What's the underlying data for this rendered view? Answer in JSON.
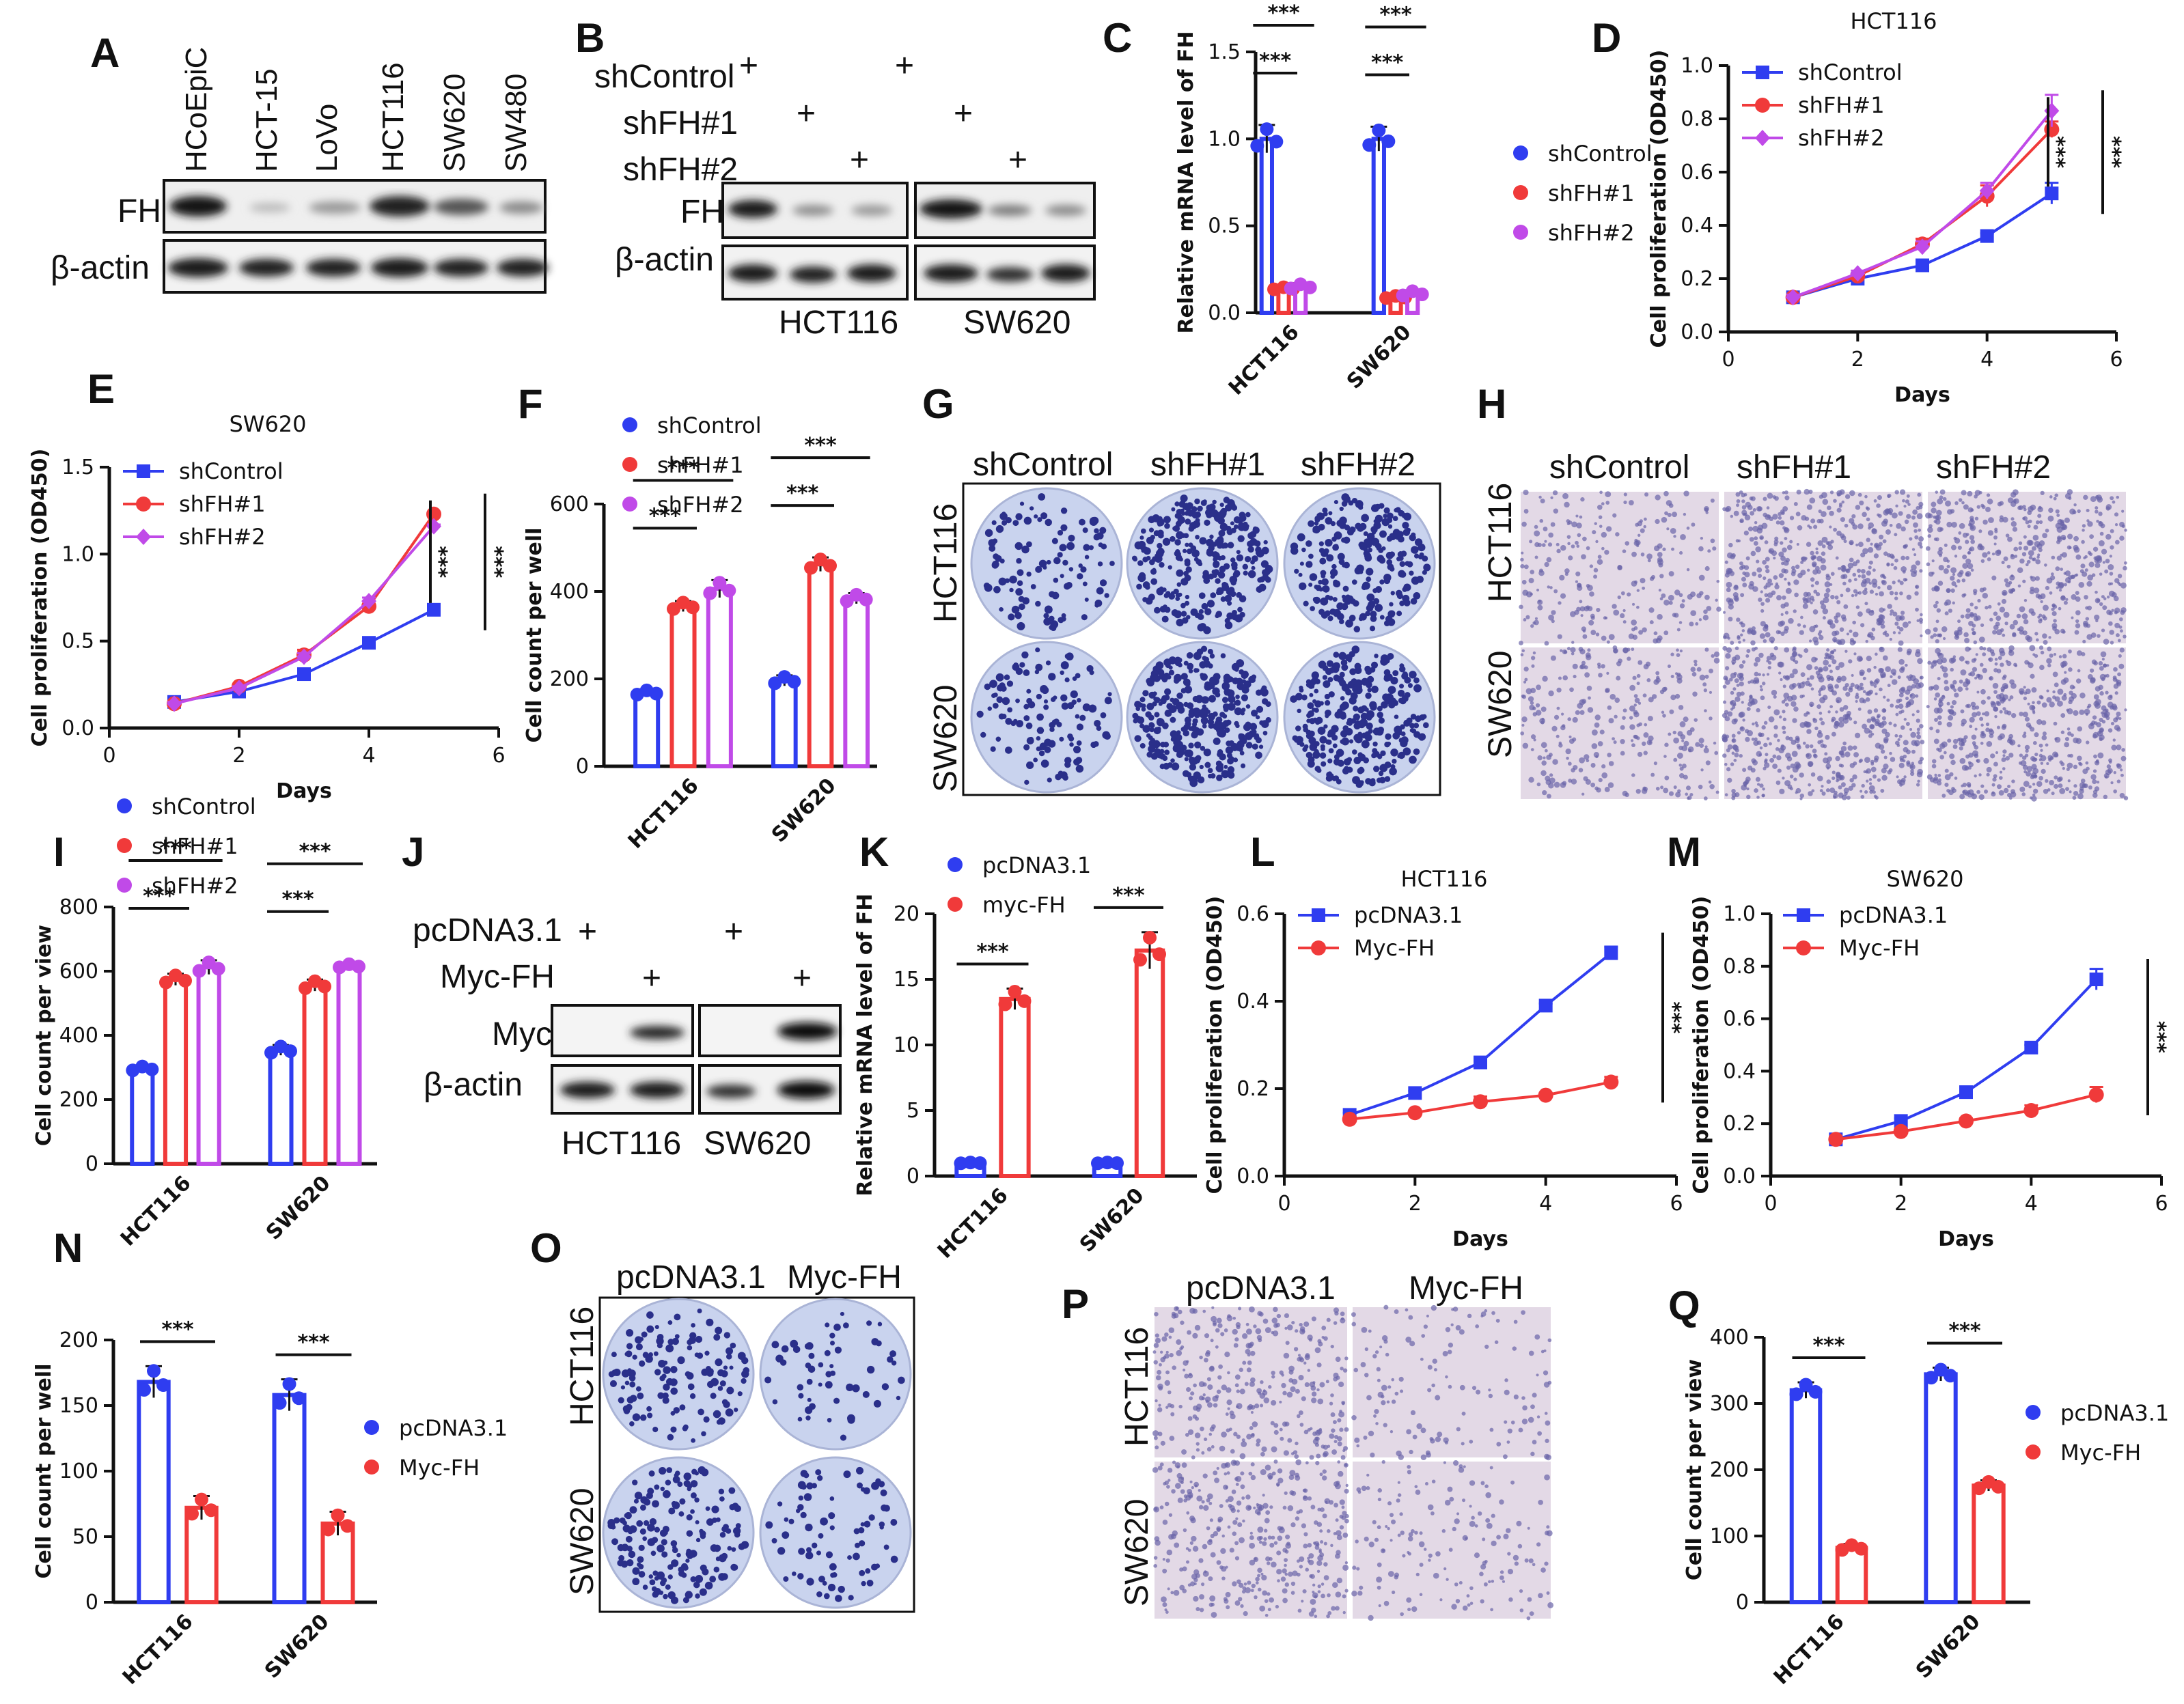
{
  "panels": {
    "A": "A",
    "B": "B",
    "C": "C",
    "D": "D",
    "E": "E",
    "F": "F",
    "G": "G",
    "H": "H",
    "I": "I",
    "J": "J",
    "K": "K",
    "L": "L",
    "M": "M",
    "N": "N",
    "O": "O",
    "P": "P",
    "Q": "Q"
  },
  "blots": {
    "A": {
      "lanes": [
        "HCoEpiC",
        "HCT-15",
        "LoVo",
        "HCT116",
        "SW620",
        "SW480"
      ],
      "rows": [
        "FH",
        "β-actin"
      ]
    },
    "B": {
      "conditions": [
        "shControl",
        "shFH#1",
        "shFH#2"
      ],
      "plus": "+",
      "rows": [
        "FH",
        "β-actin"
      ],
      "cells": [
        "HCT116",
        "SW620"
      ]
    },
    "J": {
      "conditions": [
        "pcDNA3.1",
        "Myc-FH"
      ],
      "plus": "+",
      "rows": [
        "Myc",
        "β-actin"
      ],
      "cells": [
        "HCT116",
        "SW620"
      ]
    }
  },
  "images": {
    "G": {
      "columns": [
        "shControl",
        "shFH#1",
        "shFH#2"
      ],
      "rows": [
        "HCT116",
        "SW620"
      ]
    },
    "H": {
      "columns": [
        "shControl",
        "shFH#1",
        "shFH#2"
      ],
      "rows": [
        "HCT116",
        "SW620"
      ]
    },
    "O": {
      "columns": [
        "pcDNA3.1",
        "Myc-FH"
      ],
      "rows": [
        "HCT116",
        "SW620"
      ]
    },
    "P": {
      "columns": [
        "pcDNA3.1",
        "Myc-FH"
      ],
      "rows": [
        "HCT116",
        "SW620"
      ]
    }
  },
  "colors": {
    "blue": "#2f3df0",
    "red": "#f03a3a",
    "purple": "#c04ae8",
    "stain": "#2a2f8a",
    "plate": "#c9d3ee"
  },
  "chart_data": [
    {
      "id": "C",
      "type": "bar",
      "title": "",
      "ylabel": "Relative mRNA level of FH",
      "xlabel": "",
      "ylim": [
        0,
        1.5
      ],
      "yticks": [
        "0.0",
        "0.5",
        "1.0",
        "1.5"
      ],
      "categories": [
        "HCT116",
        "SW620"
      ],
      "series": [
        {
          "name": "shControl",
          "values": [
            1.0,
            1.0
          ],
          "error": [
            0.08,
            0.07
          ]
        },
        {
          "name": "shFH#1",
          "values": [
            0.14,
            0.09
          ],
          "error": [
            0.01,
            0.01
          ]
        },
        {
          "name": "shFH#2",
          "values": [
            0.15,
            0.11
          ],
          "error": [
            0.02,
            0.02
          ]
        }
      ],
      "significance": "***"
    },
    {
      "id": "D",
      "type": "line",
      "title": "HCT116",
      "xlabel": "Days",
      "ylabel": "Cell proliferation (OD450)",
      "xlim": [
        0,
        6
      ],
      "xticks": [
        "0",
        "2",
        "4",
        "6"
      ],
      "ylim": [
        0,
        1.0
      ],
      "yticks": [
        "0.0",
        "0.2",
        "0.4",
        "0.6",
        "0.8",
        "1.0"
      ],
      "x": [
        1,
        2,
        3,
        4,
        5
      ],
      "series": [
        {
          "name": "shControl",
          "values": [
            0.13,
            0.2,
            0.25,
            0.36,
            0.52
          ],
          "error": [
            0.01,
            0.01,
            0.01,
            0.01,
            0.04
          ]
        },
        {
          "name": "shFH#1",
          "values": [
            0.13,
            0.21,
            0.33,
            0.51,
            0.76
          ],
          "error": [
            0.01,
            0.01,
            0.02,
            0.04,
            0.03
          ]
        },
        {
          "name": "shFH#2",
          "values": [
            0.13,
            0.22,
            0.32,
            0.53,
            0.83
          ],
          "error": [
            0.01,
            0.01,
            0.02,
            0.03,
            0.06
          ]
        }
      ],
      "significance": "***"
    },
    {
      "id": "E",
      "type": "line",
      "title": "SW620",
      "xlabel": "Days",
      "ylabel": "Cell proliferation (OD450)",
      "xlim": [
        0,
        6
      ],
      "xticks": [
        "0",
        "2",
        "4",
        "6"
      ],
      "ylim": [
        0,
        1.5
      ],
      "yticks": [
        "0.0",
        "0.5",
        "1.0",
        "1.5"
      ],
      "x": [
        1,
        2,
        3,
        4,
        5
      ],
      "series": [
        {
          "name": "shControl",
          "values": [
            0.15,
            0.21,
            0.31,
            0.49,
            0.68
          ],
          "error": [
            0.01,
            0.01,
            0.01,
            0.01,
            0.01
          ]
        },
        {
          "name": "shFH#1",
          "values": [
            0.14,
            0.24,
            0.42,
            0.7,
            1.23
          ],
          "error": [
            0.01,
            0.01,
            0.03,
            0.03,
            0.01
          ]
        },
        {
          "name": "shFH#2",
          "values": [
            0.14,
            0.23,
            0.41,
            0.73,
            1.16
          ],
          "error": [
            0.01,
            0.01,
            0.02,
            0.02,
            0.01
          ]
        }
      ],
      "significance": "***"
    },
    {
      "id": "F",
      "type": "bar",
      "title": "",
      "ylabel": "Cell count per well",
      "xlabel": "",
      "ylim": [
        0,
        600
      ],
      "yticks": [
        "0",
        "200",
        "400",
        "600"
      ],
      "categories": [
        "HCT116",
        "SW620"
      ],
      "series": [
        {
          "name": "shControl",
          "values": [
            168,
            196
          ],
          "error": [
            8,
            12
          ]
        },
        {
          "name": "shFH#1",
          "values": [
            366,
            462
          ],
          "error": [
            12,
            16
          ]
        },
        {
          "name": "shFH#2",
          "values": [
            406,
            384
          ],
          "error": [
            20,
            12
          ]
        }
      ],
      "significance": "***"
    },
    {
      "id": "I",
      "type": "bar",
      "title": "",
      "ylabel": "Cell count per view",
      "xlabel": "",
      "ylim": [
        0,
        800
      ],
      "yticks": [
        "0",
        "200",
        "400",
        "600",
        "800"
      ],
      "categories": [
        "HCT116",
        "SW620"
      ],
      "series": [
        {
          "name": "shControl",
          "values": [
            296,
            354
          ],
          "error": [
            10,
            16
          ]
        },
        {
          "name": "shFH#1",
          "values": [
            574,
            556
          ],
          "error": [
            18,
            18
          ]
        },
        {
          "name": "shFH#2",
          "values": [
            612,
            616
          ],
          "error": [
            22,
            8
          ]
        }
      ],
      "significance": "***"
    },
    {
      "id": "K",
      "type": "bar",
      "title": "",
      "ylabel": "Relative mRNA level of FH",
      "xlabel": "",
      "ylim": [
        0,
        20
      ],
      "yticks": [
        "0",
        "5",
        "10",
        "15",
        "20"
      ],
      "categories": [
        "HCT116",
        "SW620"
      ],
      "series": [
        {
          "name": "pcDNA3.1",
          "legend": "pcDNA3.1",
          "values": [
            1.0,
            1.0
          ],
          "error": [
            0.05,
            0.05
          ]
        },
        {
          "name": "myc-FH",
          "legend": "myc-FH",
          "values": [
            13.5,
            17.2
          ],
          "error": [
            0.8,
            1.4
          ]
        }
      ],
      "significance": "***"
    },
    {
      "id": "L",
      "type": "line",
      "title": "HCT116",
      "xlabel": "Days",
      "ylabel": "Cell proliferation (OD450)",
      "xlim": [
        0,
        6
      ],
      "xticks": [
        "0",
        "2",
        "4",
        "6"
      ],
      "ylim": [
        0,
        0.6
      ],
      "yticks": [
        "0.0",
        "0.2",
        "0.4",
        "0.6"
      ],
      "x": [
        1,
        2,
        3,
        4,
        5
      ],
      "series": [
        {
          "name": "pcDNA3.1",
          "values": [
            0.14,
            0.19,
            0.26,
            0.39,
            0.51
          ],
          "error": [
            0.005,
            0.005,
            0.005,
            0.005,
            0.015
          ]
        },
        {
          "name": "Myc-FH",
          "values": [
            0.13,
            0.145,
            0.17,
            0.185,
            0.215
          ],
          "error": [
            0.005,
            0.005,
            0.012,
            0.005,
            0.012
          ]
        }
      ],
      "significance": "***"
    },
    {
      "id": "M",
      "type": "line",
      "title": "SW620",
      "xlabel": "Days",
      "ylabel": "Cell proliferation (OD450)",
      "xlim": [
        0,
        6
      ],
      "xticks": [
        "0",
        "2",
        "4",
        "6"
      ],
      "ylim": [
        0,
        1.0
      ],
      "yticks": [
        "0.0",
        "0.2",
        "0.4",
        "0.6",
        "0.8",
        "1.0"
      ],
      "x": [
        1,
        2,
        3,
        4,
        5
      ],
      "series": [
        {
          "name": "pcDNA3.1",
          "values": [
            0.14,
            0.21,
            0.32,
            0.49,
            0.75
          ],
          "error": [
            0.01,
            0.01,
            0.01,
            0.01,
            0.04
          ]
        },
        {
          "name": "Myc-FH",
          "values": [
            0.14,
            0.17,
            0.21,
            0.25,
            0.31
          ],
          "error": [
            0.01,
            0.01,
            0.01,
            0.02,
            0.03
          ]
        }
      ],
      "significance": "***"
    },
    {
      "id": "N",
      "type": "bar",
      "title": "",
      "ylabel": "Cell count per well",
      "xlabel": "",
      "ylim": [
        0,
        200
      ],
      "yticks": [
        "0",
        "50",
        "100",
        "150",
        "200"
      ],
      "categories": [
        "HCT116",
        "SW620"
      ],
      "series": [
        {
          "name": "pcDNA3.1",
          "values": [
            168,
            158
          ],
          "error": [
            12,
            12
          ]
        },
        {
          "name": "Myc-FH",
          "values": [
            72,
            60
          ],
          "error": [
            9,
            9
          ]
        }
      ],
      "significance": "***"
    },
    {
      "id": "Q",
      "type": "bar",
      "title": "",
      "ylabel": "Cell count per view",
      "xlabel": "",
      "ylim": [
        0,
        400
      ],
      "yticks": [
        "0",
        "100",
        "200",
        "300",
        "400"
      ],
      "categories": [
        "HCT116",
        "SW620"
      ],
      "series": [
        {
          "name": "pcDNA3.1",
          "values": [
            320,
            344
          ],
          "error": [
            12,
            10
          ]
        },
        {
          "name": "Myc-FH",
          "values": [
            82,
            176
          ],
          "error": [
            6,
            8
          ]
        }
      ],
      "significance": "***"
    }
  ]
}
